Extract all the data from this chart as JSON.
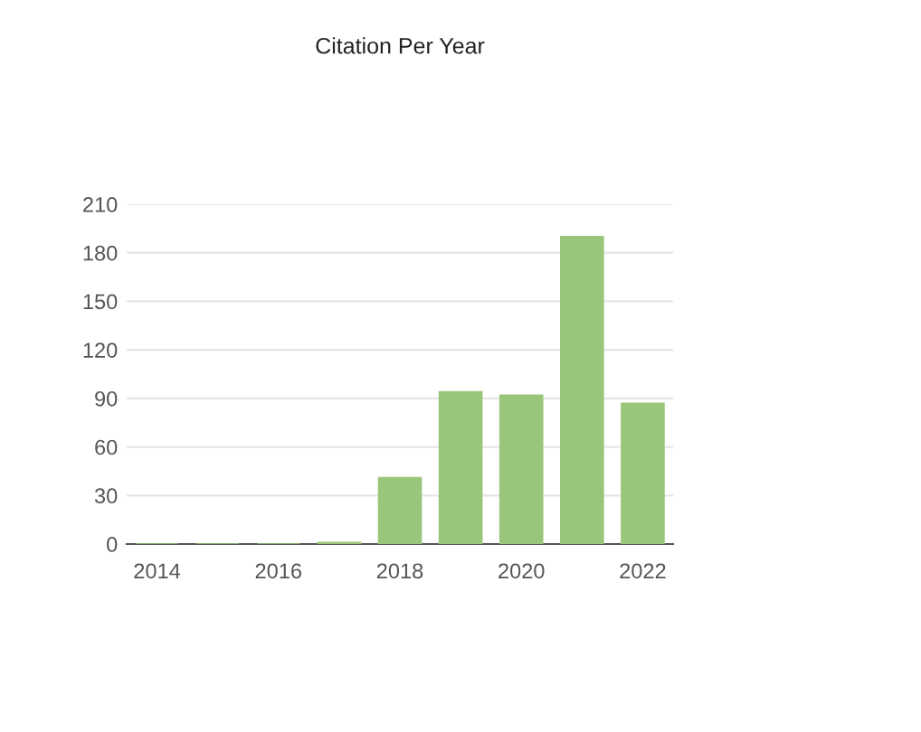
{
  "chart_data": {
    "type": "bar",
    "title": "Citation Per Year",
    "categories": [
      "2014",
      null,
      "2016",
      null,
      "2018",
      null,
      "2020",
      null,
      "2022"
    ],
    "values": [
      0,
      0,
      0,
      1,
      41,
      94,
      92,
      190,
      87
    ],
    "color": "#99c67a",
    "ylim": [
      0,
      210
    ],
    "yticks": [
      0,
      30,
      60,
      90,
      120,
      150,
      180,
      210
    ],
    "grid": "y"
  }
}
